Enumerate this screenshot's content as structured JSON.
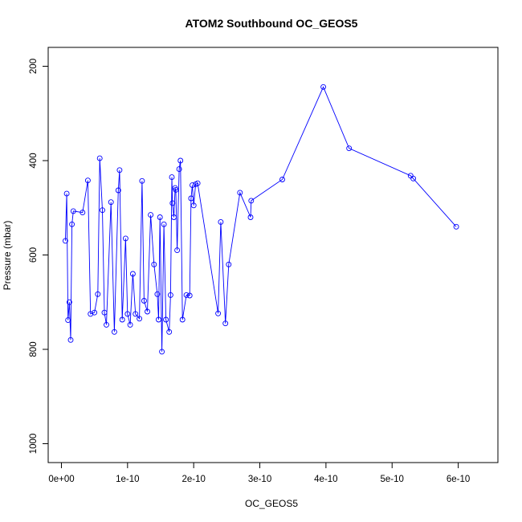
{
  "chart_data": {
    "type": "line",
    "title": "ATOM2 Southbound OC_GEOS5",
    "xlabel": "OC_GEOS5",
    "ylabel": "Pressure (mbar)",
    "xlim": [
      -2e-11,
      6.6e-10
    ],
    "ylim": [
      1040,
      160
    ],
    "y_reversed": true,
    "grid": false,
    "legend": "none",
    "x_ticks": [
      0,
      1e-10,
      2e-10,
      3e-10,
      4e-10,
      5e-10,
      6e-10
    ],
    "x_tick_labels": [
      "0e+00",
      "1e-10",
      "2e-10",
      "3e-10",
      "4e-10",
      "5e-10",
      "6e-10"
    ],
    "y_ticks": [
      200,
      400,
      600,
      800,
      1000
    ],
    "y_tick_labels": [
      "200",
      "400",
      "600",
      "800",
      "1000"
    ],
    "series_color": "#0000ff",
    "series": [
      {
        "x": [
          5.97e-10,
          5.32e-10,
          5.28e-10,
          4.35e-10,
          3.96e-10,
          3.34e-10,
          2.87e-10,
          2.86e-10,
          2.7e-10,
          2.53e-10,
          2.48e-10,
          2.41e-10,
          2.37e-10,
          2.06e-10,
          2.03e-10,
          2e-10,
          1.98e-10,
          1.96e-10,
          1.94e-10,
          1.89e-10,
          1.83e-10,
          1.8e-10,
          1.78e-10,
          1.75e-10,
          1.73e-10,
          1.72e-10,
          1.7e-10,
          1.68e-10,
          1.67e-10,
          1.65e-10,
          1.63e-10,
          1.58e-10,
          1.55e-10,
          1.52e-10,
          1.49e-10,
          1.47e-10,
          1.45e-10,
          1.4e-10,
          1.35e-10,
          1.3e-10,
          1.25e-10,
          1.22e-10,
          1.18e-10,
          1.12e-10,
          1.08e-10,
          1.04e-10,
          1e-10,
          9.7e-11,
          9.2e-11,
          8.8e-11,
          8.6e-11,
          8e-11,
          7.5e-11,
          6.8e-11,
          6.5e-11,
          6.2e-11,
          5.8e-11,
          5.5e-11,
          5e-11,
          4.4e-11,
          4e-11,
          3.2e-11,
          1.8e-11,
          1.6e-11,
          1.4e-11,
          1.2e-11,
          1e-11,
          8e-12,
          6e-12
        ],
        "y": [
          540,
          438,
          432,
          374,
          244,
          440,
          485,
          520,
          468,
          620,
          745,
          530,
          724,
          448,
          450,
          495,
          452,
          480,
          686,
          685,
          737,
          400,
          418,
          590,
          462,
          458,
          520,
          490,
          435,
          685,
          763,
          737,
          535,
          805,
          520,
          737,
          683,
          620,
          515,
          720,
          697,
          443,
          735,
          725,
          640,
          748,
          725,
          565,
          737,
          420,
          463,
          763,
          488,
          748,
          722,
          505,
          395,
          683,
          722,
          725,
          442,
          510,
          507,
          535,
          780,
          700,
          738,
          470,
          570
        ]
      }
    ]
  }
}
